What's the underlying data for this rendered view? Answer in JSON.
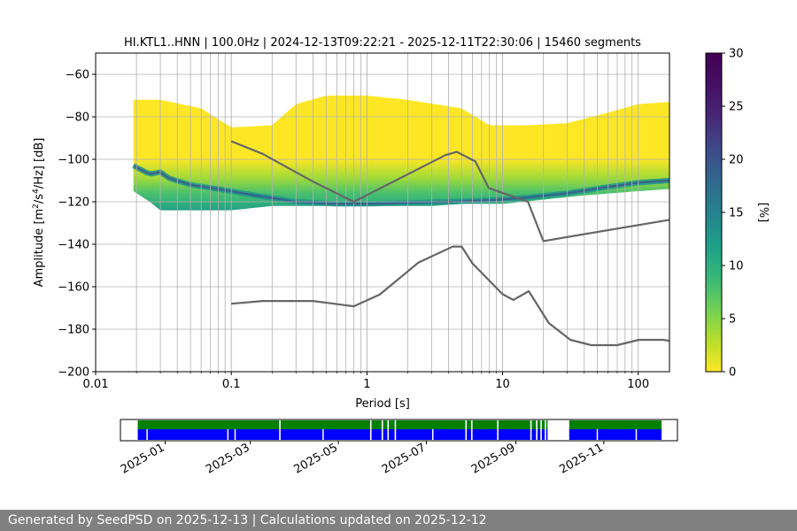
{
  "chart_data": {
    "type": "heatmap",
    "title": "HI.KTL1..HNN | 100.0Hz | 2024-12-13T09:22:21 - 2025-12-11T22:30:06 | 15460 segments",
    "xlabel": "Period [s]",
    "ylabel_parts": [
      "Amplitude [m",
      "2",
      "/s",
      "4",
      "/Hz] [dB]"
    ],
    "x_scale": "log",
    "xlim": [
      0.01,
      170
    ],
    "ylim": [
      -200,
      -50
    ],
    "x_ticks": [
      {
        "value": 0.01,
        "label": "0.01"
      },
      {
        "value": 0.1,
        "label": "0.1"
      },
      {
        "value": 1,
        "label": "1"
      },
      {
        "value": 10,
        "label": "10"
      },
      {
        "value": 100,
        "label": "100"
      }
    ],
    "y_ticks": [
      {
        "value": -60,
        "label": "−60"
      },
      {
        "value": -80,
        "label": "−80"
      },
      {
        "value": -100,
        "label": "−100"
      },
      {
        "value": -120,
        "label": "−120"
      },
      {
        "value": -140,
        "label": "−140"
      },
      {
        "value": -160,
        "label": "−160"
      },
      {
        "value": -180,
        "label": "−180"
      },
      {
        "value": -200,
        "label": "−200"
      }
    ],
    "grid": true,
    "colorbar": {
      "label": "[%]",
      "range": [
        0,
        30
      ],
      "colormap": "viridis_r",
      "ticks": [
        {
          "value": 0,
          "label": "0"
        },
        {
          "value": 5,
          "label": "5"
        },
        {
          "value": 10,
          "label": "10"
        },
        {
          "value": 15,
          "label": "15"
        },
        {
          "value": 20,
          "label": "20"
        },
        {
          "value": 25,
          "label": "25"
        },
        {
          "value": 30,
          "label": "30"
        }
      ]
    },
    "density_envelope": {
      "upper": [
        [
          0.019,
          -72
        ],
        [
          0.03,
          -72
        ],
        [
          0.06,
          -76
        ],
        [
          0.1,
          -85
        ],
        [
          0.2,
          -84
        ],
        [
          0.3,
          -74
        ],
        [
          0.5,
          -70
        ],
        [
          1,
          -70
        ],
        [
          2,
          -72
        ],
        [
          5,
          -76
        ],
        [
          8,
          -84
        ],
        [
          15,
          -84
        ],
        [
          30,
          -83
        ],
        [
          60,
          -78
        ],
        [
          100,
          -74
        ],
        [
          170,
          -73
        ]
      ],
      "lower": [
        [
          0.019,
          -115
        ],
        [
          0.025,
          -120
        ],
        [
          0.03,
          -124
        ],
        [
          0.1,
          -124
        ],
        [
          0.2,
          -122
        ],
        [
          0.5,
          -122
        ],
        [
          1,
          -122
        ],
        [
          3,
          -122
        ],
        [
          5,
          -121
        ],
        [
          10,
          -121
        ],
        [
          20,
          -119
        ],
        [
          40,
          -117
        ],
        [
          100,
          -115
        ],
        [
          170,
          -114
        ]
      ]
    },
    "mode_curve": [
      [
        0.019,
        -103
      ],
      [
        0.025,
        -107
      ],
      [
        0.03,
        -106
      ],
      [
        0.035,
        -109
      ],
      [
        0.05,
        -112
      ],
      [
        0.08,
        -114
      ],
      [
        0.15,
        -117
      ],
      [
        0.3,
        -120
      ],
      [
        0.6,
        -121
      ],
      [
        1,
        -121
      ],
      [
        2,
        -120.5
      ],
      [
        4,
        -120
      ],
      [
        10,
        -119
      ],
      [
        15,
        -118
      ],
      [
        30,
        -116
      ],
      [
        60,
        -113
      ],
      [
        100,
        -111
      ],
      [
        170,
        -110
      ]
    ],
    "upper_noise_model": [
      [
        0.1,
        -91.5
      ],
      [
        0.17,
        -97.4
      ],
      [
        0.4,
        -110.5
      ],
      [
        0.8,
        -120
      ],
      [
        3.8,
        -98
      ],
      [
        4.6,
        -96.5
      ],
      [
        6.3,
        -101
      ],
      [
        7.9,
        -113.5
      ],
      [
        15.4,
        -120
      ],
      [
        20,
        -138.5
      ],
      [
        170,
        -128.5
      ]
    ],
    "lower_noise_model": [
      [
        0.1,
        -168
      ],
      [
        0.17,
        -166.7
      ],
      [
        0.4,
        -166.7
      ],
      [
        0.8,
        -169.2
      ],
      [
        1.24,
        -163.7
      ],
      [
        2.4,
        -148.6
      ],
      [
        4.3,
        -141.1
      ],
      [
        5,
        -141.1
      ],
      [
        6,
        -149
      ],
      [
        10,
        -163.5
      ],
      [
        12,
        -166.2
      ],
      [
        15.6,
        -162.1
      ],
      [
        21.9,
        -177.1
      ],
      [
        31.6,
        -185
      ],
      [
        45,
        -187.5
      ],
      [
        70,
        -187.5
      ],
      [
        101,
        -185
      ],
      [
        154,
        -185
      ],
      [
        170,
        -185.5
      ]
    ],
    "timeline": {
      "start": "2024-12-13",
      "end": "2025-12-11",
      "tick_labels": [
        "2025-01",
        "2025-03",
        "2025-05",
        "2025-07",
        "2025-09",
        "2025-11"
      ],
      "tick_dates": [
        "2025-01-01",
        "2025-03-01",
        "2025-05-01",
        "2025-07-01",
        "2025-09-01",
        "2025-11-01"
      ],
      "data_color": "#008000",
      "psd_color": "#0000ff",
      "gaps": [
        [
          "2025-03-21",
          "2025-03-22"
        ],
        [
          "2025-05-23",
          "2025-05-24"
        ],
        [
          "2025-05-31",
          "2025-06-01"
        ],
        [
          "2025-06-04",
          "2025-06-05"
        ],
        [
          "2025-06-09",
          "2025-06-10"
        ],
        [
          "2025-07-28",
          "2025-07-29"
        ],
        [
          "2025-08-01",
          "2025-08-02"
        ],
        [
          "2025-08-19",
          "2025-08-20"
        ],
        [
          "2025-09-11",
          "2025-09-12"
        ],
        [
          "2025-09-15",
          "2025-09-16"
        ],
        [
          "2025-09-18",
          "2025-09-19"
        ],
        [
          "2025-09-21",
          "2025-09-22"
        ],
        [
          "2025-09-23",
          "2025-10-08"
        ]
      ],
      "psd_gaps": [
        [
          "2024-12-19",
          "2024-12-20"
        ],
        [
          "2025-02-13",
          "2025-02-14"
        ],
        [
          "2025-02-18",
          "2025-02-19"
        ],
        [
          "2025-04-20",
          "2025-04-21"
        ],
        [
          "2025-07-05",
          "2025-07-06"
        ],
        [
          "2025-10-27",
          "2025-10-28"
        ],
        [
          "2025-11-23",
          "2025-11-24"
        ]
      ]
    }
  },
  "footer": {
    "text": "Generated by SeedPSD on 2025-12-13 | Calculations updated on 2025-12-12"
  }
}
